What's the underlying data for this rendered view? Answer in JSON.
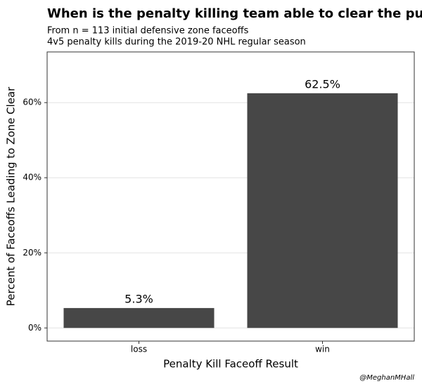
{
  "chart_data": {
    "type": "bar",
    "title": "When is the penalty killing team able to clear the puck?",
    "subtitle": [
      "From n = 113 initial defensive zone faceoffs",
      "4v5 penalty kills during the 2019-20 NHL regular season"
    ],
    "x_label": "Penalty Kill Faceoff Result",
    "y_label": "Percent of Faceoffs Leading to Zone Clear",
    "caption": "@MeghanMHall",
    "categories": [
      "loss",
      "win"
    ],
    "values": [
      5.3,
      62.5
    ],
    "value_labels": [
      "5.3%",
      "62.5%"
    ],
    "color": "#474747",
    "ylim": [
      -3.5,
      73.5
    ],
    "yticks": [
      {
        "value": 0,
        "label": "0%"
      },
      {
        "value": 20,
        "label": "20%"
      },
      {
        "value": 40,
        "label": "40%"
      },
      {
        "value": 60,
        "label": "60%"
      }
    ],
    "grid": true
  }
}
